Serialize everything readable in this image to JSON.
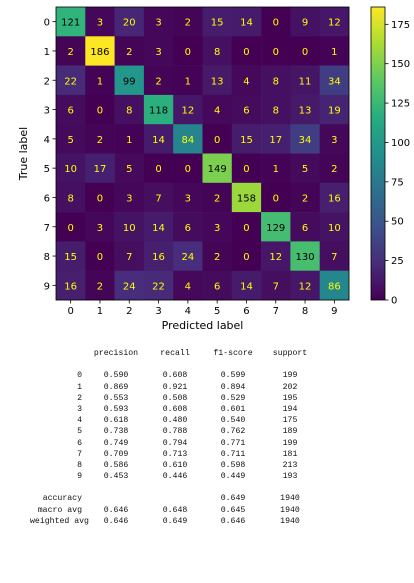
{
  "chart_data": {
    "type": "heatmap",
    "title": "",
    "xlabel": "Predicted label",
    "ylabel": "True label",
    "x_tick_labels": [
      "0",
      "1",
      "2",
      "3",
      "4",
      "5",
      "6",
      "7",
      "8",
      "9"
    ],
    "y_tick_labels": [
      "0",
      "1",
      "2",
      "3",
      "4",
      "5",
      "6",
      "7",
      "8",
      "9"
    ],
    "matrix": [
      [
        121,
        3,
        20,
        3,
        2,
        15,
        14,
        0,
        9,
        12
      ],
      [
        2,
        186,
        2,
        3,
        0,
        8,
        0,
        0,
        0,
        1
      ],
      [
        22,
        1,
        99,
        2,
        1,
        13,
        4,
        8,
        11,
        34
      ],
      [
        6,
        0,
        8,
        118,
        12,
        4,
        6,
        8,
        13,
        19
      ],
      [
        5,
        2,
        1,
        14,
        84,
        0,
        15,
        17,
        34,
        3
      ],
      [
        10,
        17,
        5,
        0,
        0,
        149,
        0,
        1,
        5,
        2
      ],
      [
        8,
        0,
        3,
        7,
        3,
        2,
        158,
        0,
        2,
        16
      ],
      [
        0,
        3,
        10,
        14,
        6,
        3,
        0,
        129,
        6,
        10
      ],
      [
        15,
        0,
        7,
        16,
        24,
        2,
        0,
        12,
        130,
        7
      ],
      [
        16,
        2,
        24,
        22,
        4,
        6,
        14,
        7,
        12,
        86
      ]
    ],
    "colormap": "viridis",
    "vmin": 0,
    "vmax": 186,
    "colorbar_ticks": [
      0,
      25,
      50,
      75,
      100,
      125,
      150,
      175
    ],
    "text_color_dark_cells": "#ffff00",
    "text_color_light_cells": "#000000"
  },
  "report": {
    "headers": [
      "precision",
      "recall",
      "f1-score",
      "support"
    ],
    "rows": [
      {
        "label": "0",
        "values": [
          "0.590",
          "0.608",
          "0.599",
          "199"
        ]
      },
      {
        "label": "1",
        "values": [
          "0.869",
          "0.921",
          "0.894",
          "202"
        ]
      },
      {
        "label": "2",
        "values": [
          "0.553",
          "0.508",
          "0.529",
          "195"
        ]
      },
      {
        "label": "3",
        "values": [
          "0.593",
          "0.608",
          "0.601",
          "194"
        ]
      },
      {
        "label": "4",
        "values": [
          "0.618",
          "0.480",
          "0.540",
          "175"
        ]
      },
      {
        "label": "5",
        "values": [
          "0.738",
          "0.788",
          "0.762",
          "189"
        ]
      },
      {
        "label": "6",
        "values": [
          "0.749",
          "0.794",
          "0.771",
          "199"
        ]
      },
      {
        "label": "7",
        "values": [
          "0.709",
          "0.713",
          "0.711",
          "181"
        ]
      },
      {
        "label": "8",
        "values": [
          "0.586",
          "0.610",
          "0.598",
          "213"
        ]
      },
      {
        "label": "9",
        "values": [
          "0.453",
          "0.446",
          "0.449",
          "193"
        ]
      }
    ],
    "summary": [
      {
        "label": "accuracy",
        "values": [
          "",
          "",
          "0.649",
          "1940"
        ]
      },
      {
        "label": "macro avg",
        "values": [
          "0.646",
          "0.648",
          "0.645",
          "1940"
        ]
      },
      {
        "label": "weighted avg",
        "values": [
          "0.646",
          "0.649",
          "0.646",
          "1940"
        ]
      }
    ]
  }
}
